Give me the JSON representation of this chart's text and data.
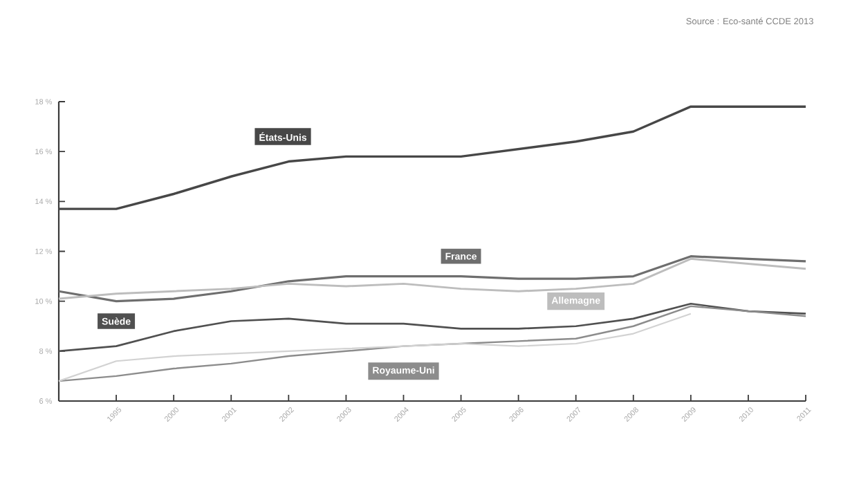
{
  "chart_data": {
    "type": "line",
    "categories": [
      null,
      "1995",
      "2000",
      "2001",
      "2002",
      "2003",
      "2004",
      "2005",
      "2006",
      "2007",
      "2008",
      "2009",
      "2010",
      "2011"
    ],
    "series": [
      {
        "name": "États-Unis",
        "color": "#474747",
        "values": [
          13.7,
          13.7,
          14.3,
          15.0,
          15.6,
          15.8,
          15.8,
          15.8,
          16.1,
          16.4,
          16.8,
          17.8,
          17.8,
          17.8
        ]
      },
      {
        "name": "France",
        "color": "#6e6e6e",
        "values": [
          10.4,
          10.0,
          10.1,
          10.4,
          10.8,
          11.0,
          11.0,
          11.0,
          10.9,
          10.9,
          11.0,
          11.8,
          11.7,
          11.6
        ]
      },
      {
        "name": "Allemagne",
        "color": "#bdbdbd",
        "values": [
          10.1,
          10.3,
          10.4,
          10.5,
          10.7,
          10.6,
          10.7,
          10.5,
          10.4,
          10.5,
          10.7,
          11.7,
          11.5,
          11.3
        ]
      },
      {
        "name": "Suède",
        "color": "#505050",
        "values": [
          8.0,
          8.2,
          8.8,
          9.2,
          9.3,
          9.1,
          9.1,
          8.9,
          8.9,
          9.0,
          9.3,
          9.9,
          9.6,
          9.5
        ]
      },
      {
        "name": "Royaume-Uni",
        "color": "#8c8c8c",
        "values": [
          6.8,
          7.0,
          7.3,
          7.5,
          7.8,
          8.0,
          8.2,
          8.3,
          8.4,
          8.5,
          9.0,
          9.8,
          9.6,
          9.4
        ]
      },
      {
        "color": "#d2d2d2",
        "values": [
          6.8,
          7.6,
          7.8,
          7.9,
          8.0,
          8.1,
          8.2,
          8.3,
          8.2,
          8.3,
          8.7,
          9.5,
          null,
          null
        ]
      }
    ],
    "ylim": [
      6,
      18
    ],
    "yticks": [
      {
        "value": 6,
        "label": "6 %"
      },
      {
        "value": 8,
        "label": "8 %"
      },
      {
        "value": 10,
        "label": "10 %"
      },
      {
        "value": 12,
        "label": "12 %"
      },
      {
        "value": 14,
        "label": "14 %"
      },
      {
        "value": 16,
        "label": "16 %"
      },
      {
        "value": 18,
        "label": "18 %"
      }
    ],
    "annotations": [
      "Source : Eco-santé CCDE 2013"
    ],
    "grid": false,
    "legend": false,
    "marker": "none"
  }
}
